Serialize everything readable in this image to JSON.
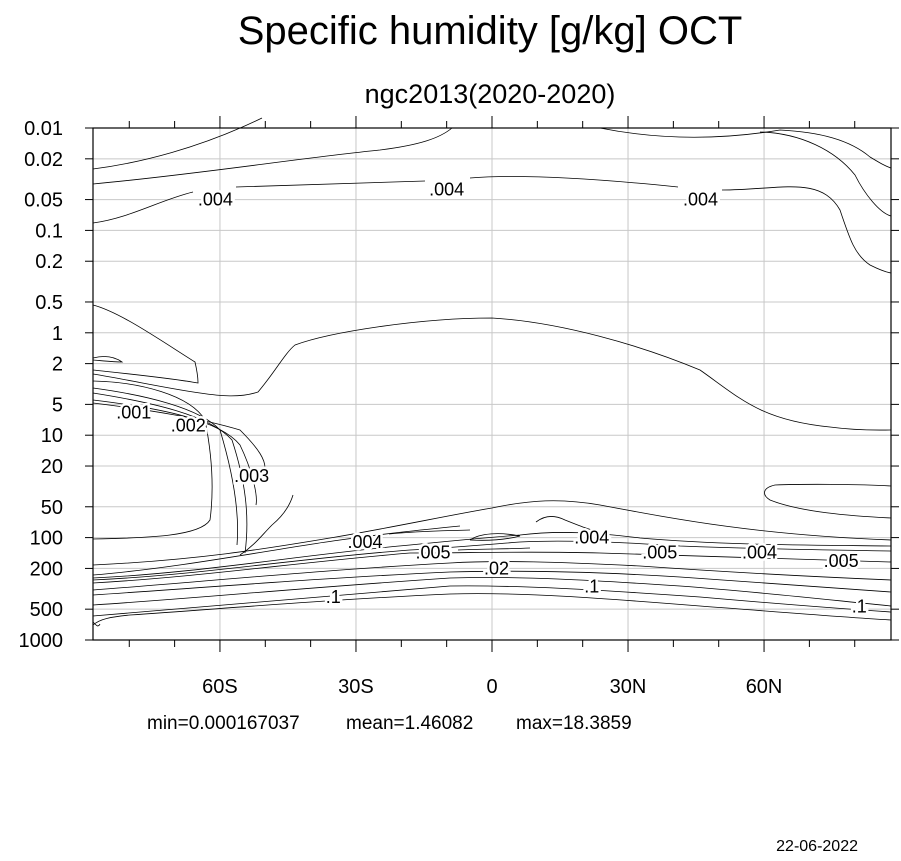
{
  "chart_data": {
    "type": "contour",
    "title": "Specific humidity [g/kg] OCT",
    "subtitle": "ngc2013(2020-2020)",
    "xlabel": "",
    "ylabel": "",
    "x_ticks": [
      {
        "value": -60,
        "label": "60S"
      },
      {
        "value": -30,
        "label": "30S"
      },
      {
        "value": 0,
        "label": "0"
      },
      {
        "value": 30,
        "label": "30N"
      },
      {
        "value": 60,
        "label": "60N"
      }
    ],
    "xlim": [
      -88,
      88
    ],
    "y_scale": "log",
    "y_reversed": true,
    "ylim": [
      1000,
      0.01
    ],
    "y_ticks": [
      "0.01",
      "0.02",
      "0.05",
      "0.1",
      "0.2",
      "0.5",
      "1",
      "2",
      "5",
      "10",
      "20",
      "50",
      "100",
      "200",
      "500",
      "1000"
    ],
    "grid": true,
    "contour_labels": [
      {
        "text": ".004",
        "x": -61,
        "y": 0.05
      },
      {
        "text": ".004",
        "x": -10,
        "y": 0.04
      },
      {
        "text": ".004",
        "x": 46,
        "y": 0.05
      },
      {
        "text": ".001",
        "x": -79,
        "y": 6
      },
      {
        "text": ".002",
        "x": -67,
        "y": 8
      },
      {
        "text": ".003",
        "x": -53,
        "y": 25
      },
      {
        "text": ".004",
        "x": -28,
        "y": 110
      },
      {
        "text": ".005",
        "x": -13,
        "y": 140
      },
      {
        "text": ".02",
        "x": 1,
        "y": 200
      },
      {
        "text": ".004",
        "x": 22,
        "y": 100
      },
      {
        "text": ".005",
        "x": 37,
        "y": 140
      },
      {
        "text": ".004",
        "x": 59,
        "y": 140
      },
      {
        "text": ".005",
        "x": 77,
        "y": 170
      },
      {
        "text": ".1",
        "x": -35,
        "y": 380
      },
      {
        "text": ".1",
        "x": 22,
        "y": 300
      },
      {
        "text": ".1",
        "x": 81,
        "y": 470
      }
    ],
    "stats": {
      "min": "min=0.000167037",
      "mean": "mean=1.46082",
      "max": "max=18.3859"
    }
  },
  "footer": {
    "date": "22-06-2022"
  }
}
